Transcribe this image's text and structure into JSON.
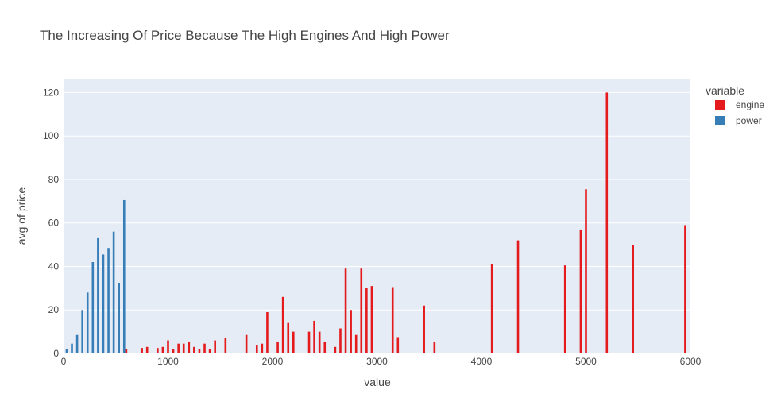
{
  "chart_data": {
    "type": "bar",
    "title": "The Increasing Of Price Because The High Engines And High Power",
    "xlabel": "value",
    "ylabel": "avg of price",
    "xlim": [
      0,
      6000
    ],
    "ylim": [
      0,
      126
    ],
    "xticks": [
      "0",
      "1000",
      "2000",
      "3000",
      "4000",
      "5000",
      "6000"
    ],
    "yticks": [
      "0",
      "20",
      "40",
      "60",
      "80",
      "100",
      "120"
    ],
    "grid": true,
    "legend": {
      "title": "variable",
      "position": "right"
    },
    "series": [
      {
        "name": "engine",
        "color": "#e41a1c",
        "x": [
          600,
          750,
          800,
          900,
          950,
          1000,
          1050,
          1100,
          1150,
          1200,
          1250,
          1300,
          1350,
          1400,
          1450,
          1550,
          1750,
          1850,
          1900,
          1950,
          2050,
          2100,
          2150,
          2200,
          2350,
          2400,
          2450,
          2500,
          2600,
          2650,
          2700,
          2750,
          2800,
          2850,
          2900,
          2950,
          3150,
          3200,
          3450,
          3550,
          4100,
          4350,
          4800,
          4950,
          5000,
          5200,
          5450,
          5950
        ],
        "values": [
          2,
          2.5,
          3,
          2.5,
          3,
          6,
          2,
          4.5,
          4.5,
          5.5,
          3,
          2,
          4.5,
          2,
          6,
          7,
          8.5,
          4,
          4.5,
          19,
          5.5,
          26,
          14,
          10,
          10,
          15,
          10,
          5.5,
          3,
          11.5,
          39,
          20,
          8.5,
          39,
          30,
          31,
          30.5,
          7.5,
          22,
          5.5,
          41,
          52,
          40.5,
          57,
          75.5,
          120,
          50,
          59
        ]
      },
      {
        "name": "power",
        "color": "#377eb8",
        "x": [
          30,
          80,
          130,
          180,
          230,
          280,
          330,
          380,
          430,
          480,
          530,
          580
        ],
        "values": [
          2,
          4.5,
          8.5,
          20,
          28,
          42,
          53,
          45.5,
          48.5,
          56,
          32.5,
          70.5
        ]
      }
    ]
  }
}
